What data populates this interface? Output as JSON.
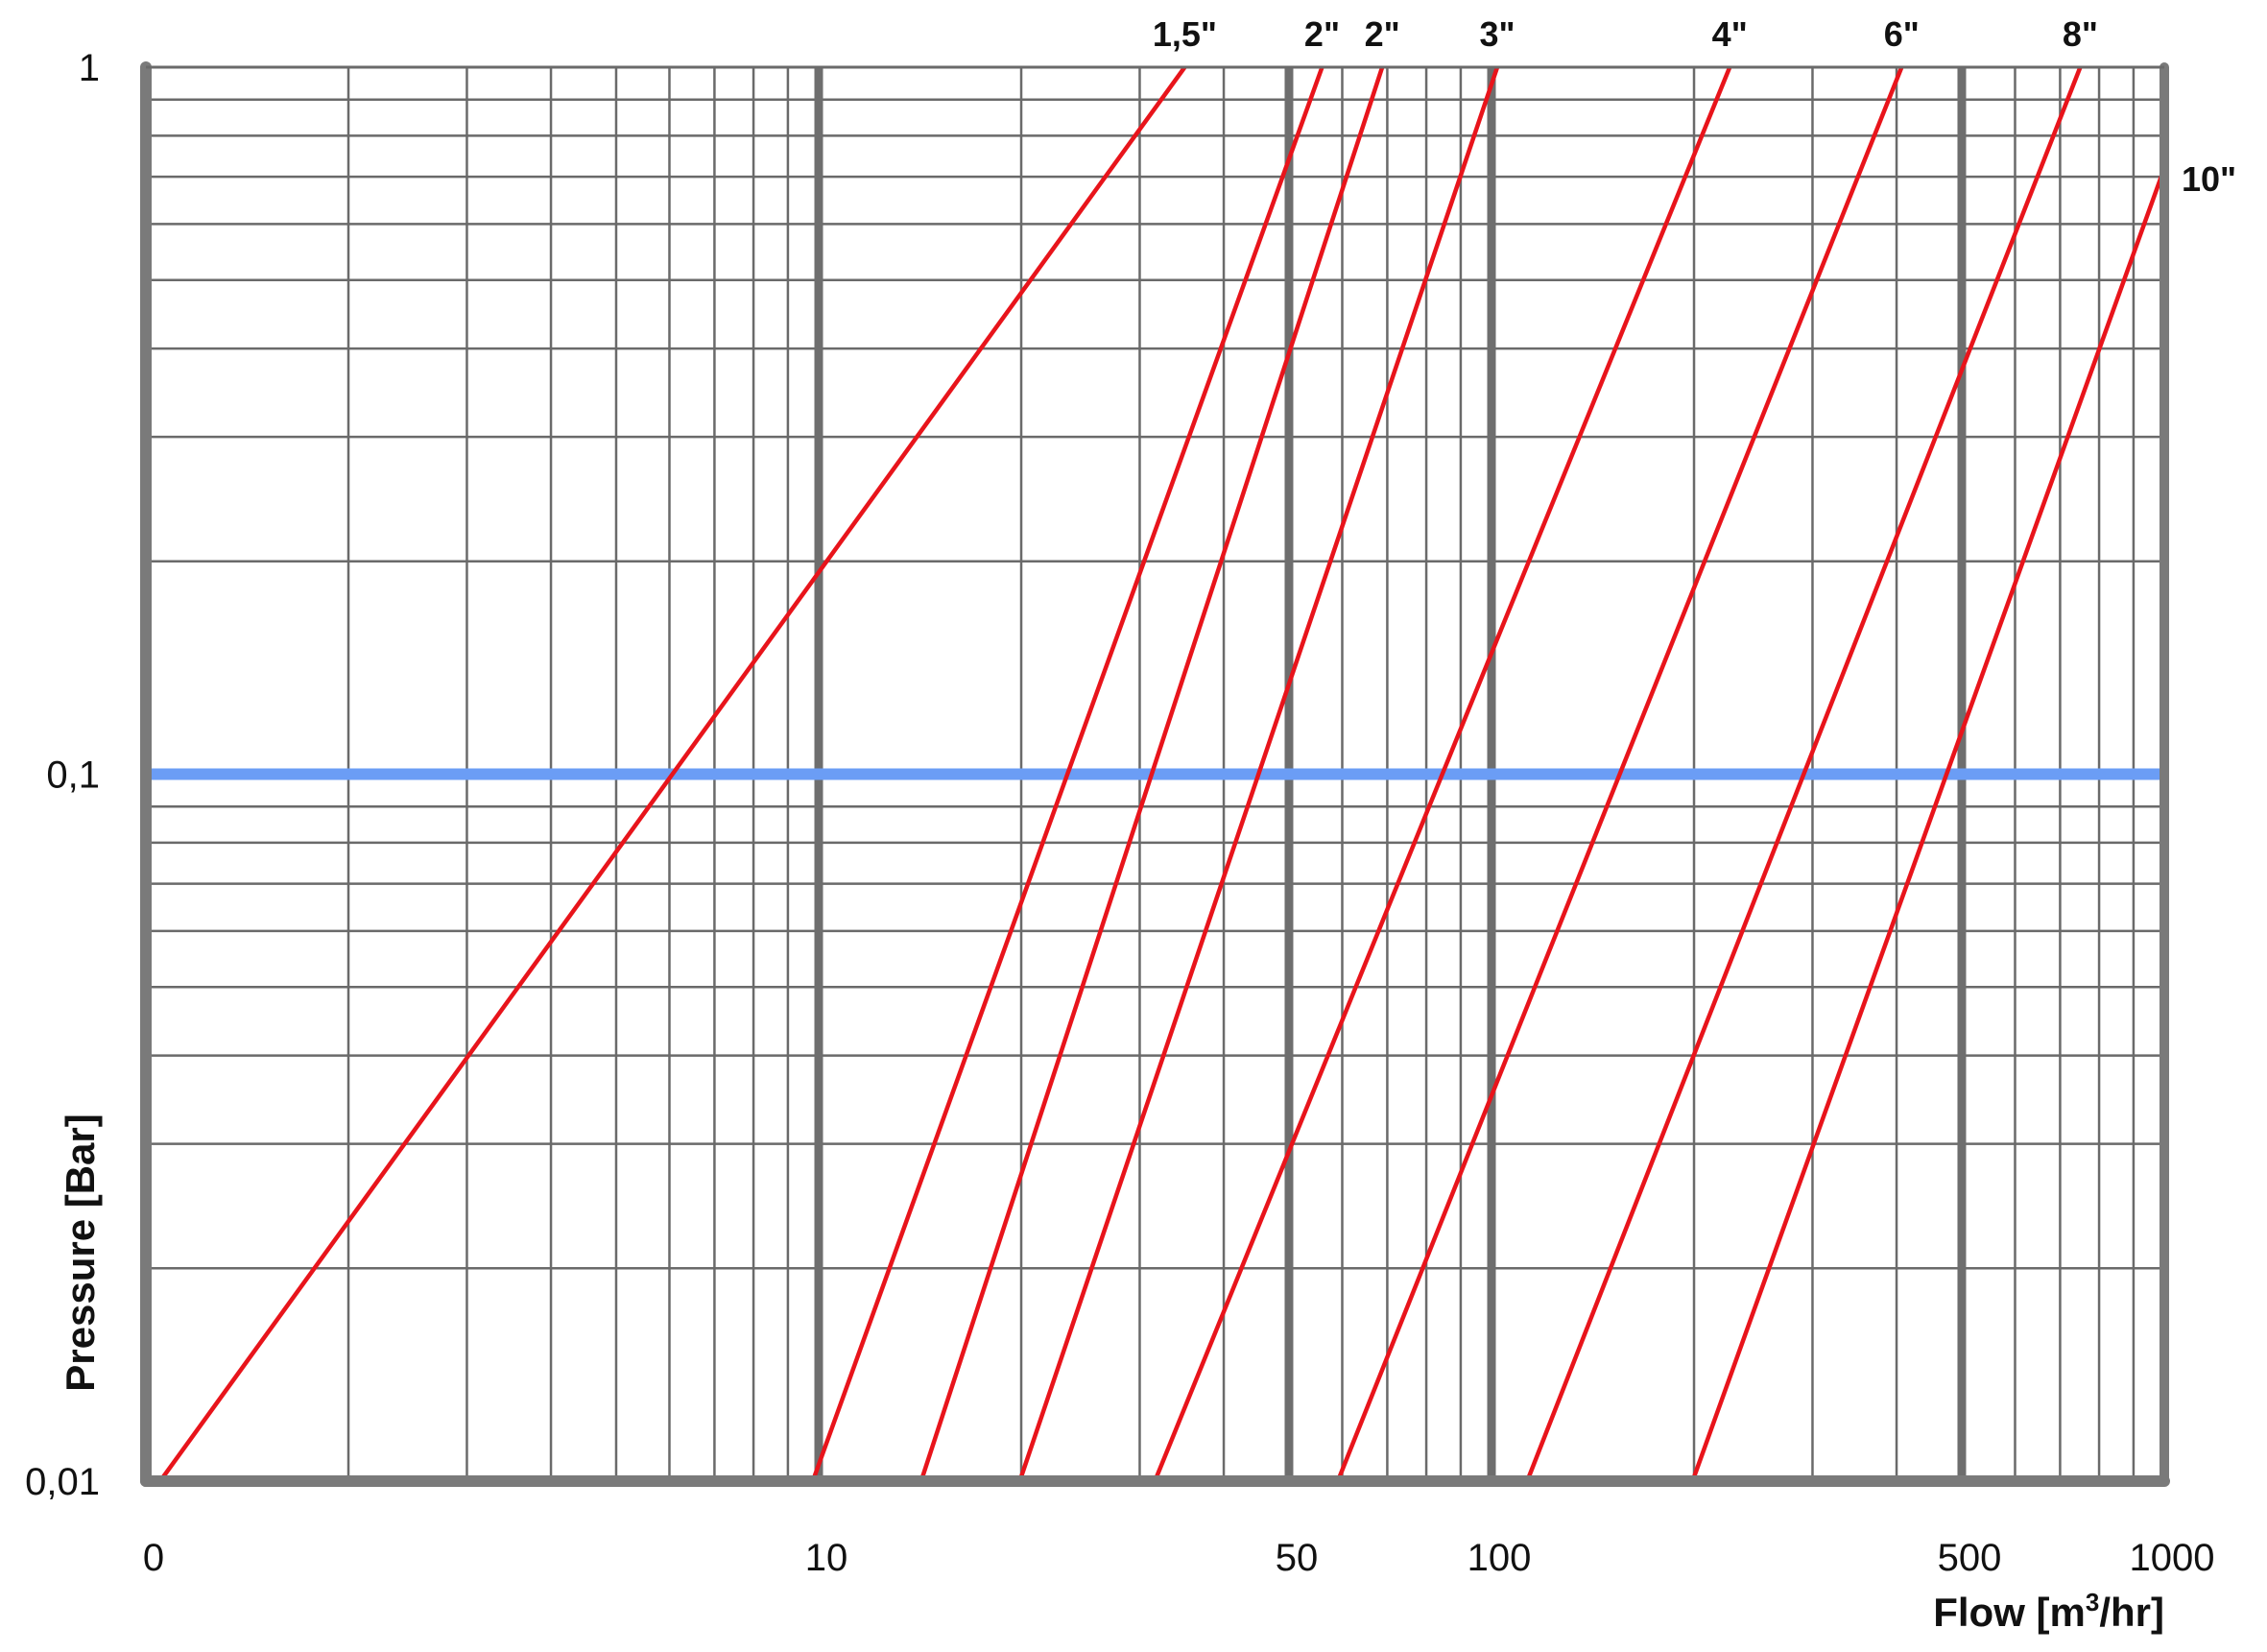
{
  "chart_data": {
    "type": "line",
    "title": "",
    "xlabel": "Flow [m³/hr]",
    "xlabel_main": "Flow [m",
    "xlabel_sup": "3",
    "xlabel_tail": "/hr]",
    "ylabel": "Pressure [Bar]",
    "x_scale": "log",
    "y_scale": "log",
    "xlim": [
      1,
      1000
    ],
    "ylim": [
      0.01,
      1
    ],
    "x_tick_labels": [
      {
        "value": 1,
        "label": "0"
      },
      {
        "value": 10,
        "label": "10"
      },
      {
        "value": 50,
        "label": "50"
      },
      {
        "value": 100,
        "label": "100"
      },
      {
        "value": 500,
        "label": "500"
      },
      {
        "value": 1000,
        "label": "1000"
      }
    ],
    "y_tick_labels": [
      {
        "value": 1,
        "label": "1"
      },
      {
        "value": 0.1,
        "label": "0,1"
      },
      {
        "value": 0.01,
        "label": "0,01"
      }
    ],
    "x_grid_minor": [
      2,
      3,
      4,
      5,
      6,
      7,
      8,
      9,
      20,
      30,
      40,
      60,
      70,
      80,
      90,
      200,
      300,
      400,
      600,
      700,
      800,
      900
    ],
    "x_grid_major": [
      10,
      50,
      100,
      500
    ],
    "y_grid_minor": [
      0.02,
      0.03,
      0.04,
      0.05,
      0.06,
      0.07,
      0.08,
      0.09,
      0.2,
      0.3,
      0.4,
      0.5,
      0.6,
      0.7,
      0.8,
      0.9
    ],
    "grid": true,
    "reference_line": {
      "y": 0.1,
      "color": "#6b9df5"
    },
    "line_color": "#e8141b",
    "series": [
      {
        "name": "1,5\"",
        "x": [
          1.05,
          35.0
        ],
        "y": [
          0.01,
          1
        ]
      },
      {
        "name": "2\"",
        "x": [
          9.8,
          56.0
        ],
        "y": [
          0.01,
          1
        ]
      },
      {
        "name": "2\"",
        "x": [
          14.2,
          68.8
        ],
        "y": [
          0.01,
          1
        ]
      },
      {
        "name": "3\"",
        "x": [
          19.9,
          102.0
        ],
        "y": [
          0.01,
          1
        ]
      },
      {
        "name": "4\"",
        "x": [
          31.6,
          226.0
        ],
        "y": [
          0.01,
          1
        ]
      },
      {
        "name": "6\"",
        "x": [
          59.1,
          407.0
        ],
        "y": [
          0.01,
          1
        ]
      },
      {
        "name": "8\"",
        "x": [
          113.0,
          750.0
        ],
        "y": [
          0.01,
          1
        ]
      },
      {
        "name": "10\"",
        "x": [
          199.0,
          1000.0
        ],
        "y": [
          0.01,
          0.72
        ]
      }
    ]
  }
}
